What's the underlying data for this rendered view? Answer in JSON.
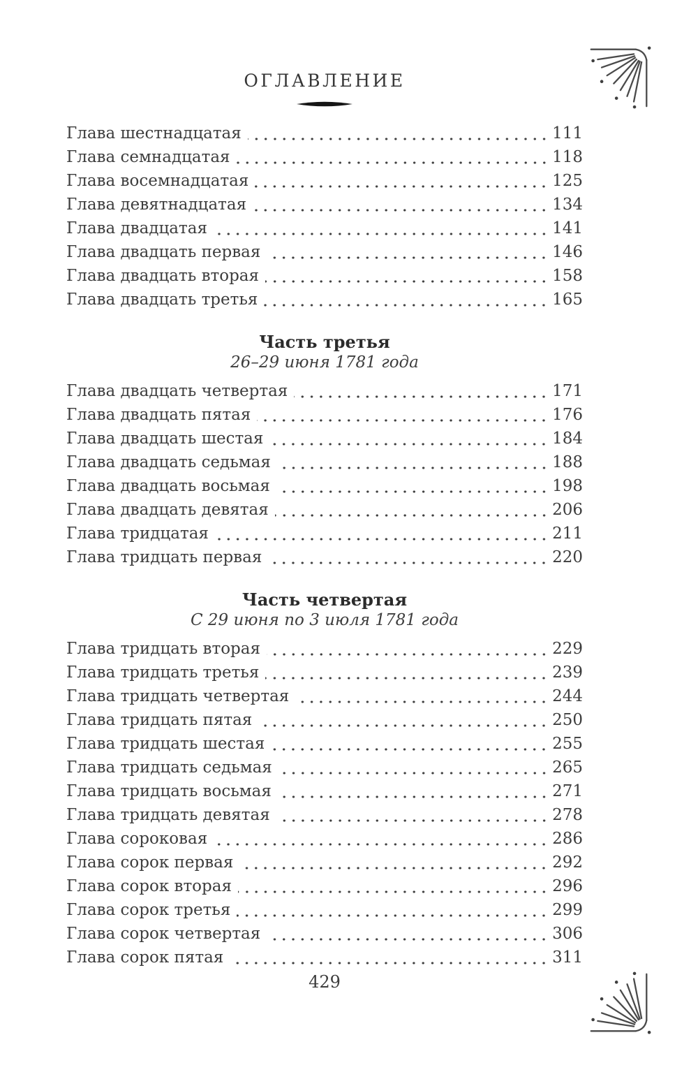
{
  "page": {
    "title": "ОГЛАВЛЕНИЕ",
    "folio": "429"
  },
  "colors": {
    "background": "#ffffff",
    "text": "#3d3d3d",
    "heading": "#2b2b2b",
    "ornament": "#4a4a4a"
  },
  "ornaments": {
    "top_right": "corner-sunburst",
    "bottom_right": "corner-sunburst-flipped",
    "title_divider": "lens-shape"
  },
  "toc": {
    "sections": [
      {
        "heading": null,
        "subtitle": null,
        "entries": [
          {
            "label": "Глава шестнадцатая",
            "page": "111"
          },
          {
            "label": "Глава семнадцатая",
            "page": "118"
          },
          {
            "label": "Глава восемнадцатая",
            "page": "125"
          },
          {
            "label": "Глава девятнадцатая",
            "page": "134"
          },
          {
            "label": "Глава двадцатая",
            "page": "141"
          },
          {
            "label": "Глава двадцать первая",
            "page": "146"
          },
          {
            "label": "Глава двадцать вторая",
            "page": "158"
          },
          {
            "label": "Глава двадцать третья",
            "page": "165"
          }
        ]
      },
      {
        "heading": "Часть третья",
        "subtitle": "26–29 июня 1781 года",
        "entries": [
          {
            "label": "Глава двадцать четвертая",
            "page": "171"
          },
          {
            "label": "Глава двадцать пятая",
            "page": "176"
          },
          {
            "label": "Глава двадцать шестая",
            "page": "184"
          },
          {
            "label": "Глава двадцать седьмая",
            "page": "188"
          },
          {
            "label": "Глава двадцать восьмая",
            "page": "198"
          },
          {
            "label": "Глава двадцать девятая",
            "page": "206"
          },
          {
            "label": "Глава тридцатая",
            "page": "211"
          },
          {
            "label": "Глава тридцать первая",
            "page": "220"
          }
        ]
      },
      {
        "heading": "Часть четвертая",
        "subtitle": "С 29 июня по 3 июля 1781 года",
        "entries": [
          {
            "label": "Глава тридцать вторая",
            "page": "229"
          },
          {
            "label": "Глава тридцать третья",
            "page": "239"
          },
          {
            "label": "Глава тридцать четвертая",
            "page": "244"
          },
          {
            "label": "Глава тридцать пятая",
            "page": "250"
          },
          {
            "label": "Глава тридцать шестая",
            "page": "255"
          },
          {
            "label": "Глава тридцать седьмая",
            "page": "265"
          },
          {
            "label": "Глава тридцать восьмая",
            "page": "271"
          },
          {
            "label": "Глава тридцать девятая",
            "page": "278"
          },
          {
            "label": "Глава сороковая",
            "page": "286"
          },
          {
            "label": "Глава сорок первая",
            "page": "292"
          },
          {
            "label": "Глава сорок вторая",
            "page": "296"
          },
          {
            "label": "Глава сорок третья",
            "page": "299"
          },
          {
            "label": "Глава сорок четвертая",
            "page": "306"
          },
          {
            "label": "Глава сорок пятая",
            "page": "311"
          }
        ]
      }
    ]
  }
}
